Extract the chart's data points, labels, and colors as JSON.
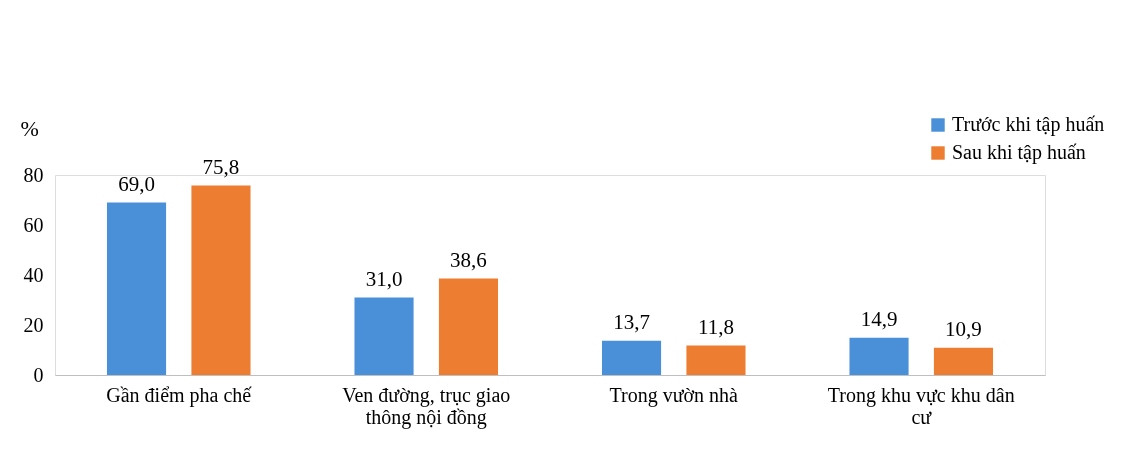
{
  "chart_data": {
    "type": "bar",
    "ylabel": "%",
    "categories": [
      "Gần điểm pha chế",
      "Ven đường, trục giao thông nội đồng",
      "Trong vườn nhà",
      "Trong khu vực khu dân cư"
    ],
    "series": [
      {
        "name": "Trước khi tập huấn",
        "color": "#4a90d9",
        "values": [
          69.0,
          31.0,
          13.7,
          14.9
        ]
      },
      {
        "name": "Sau khi tập huấn",
        "color": "#ed7d31",
        "values": [
          75.8,
          38.6,
          11.8,
          10.9
        ]
      }
    ],
    "value_labels": [
      [
        "69,0",
        "31,0",
        "13,7",
        "14,9"
      ],
      [
        "75,8",
        "38,6",
        "11,8",
        "10,9"
      ]
    ],
    "ylim": [
      0,
      80
    ],
    "yticks": [
      0,
      20,
      40,
      60,
      80
    ],
    "grid": false,
    "legend": "top right"
  }
}
